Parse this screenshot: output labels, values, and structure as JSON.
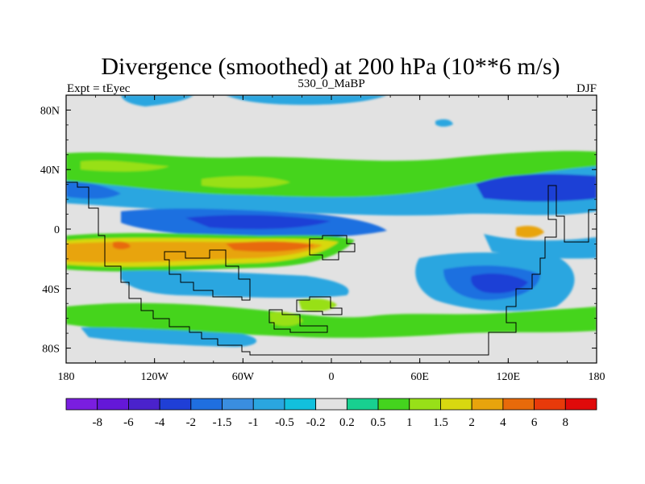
{
  "chart_data": {
    "type": "heatmap",
    "title": "Divergence (smoothed) at 200 hPa (10**6 m/s)",
    "subtitle_left": "Expt = tEyec",
    "subtitle_center": "530_0_MaBP",
    "subtitle_right": "DJF",
    "x_ticks": [
      "180",
      "120W",
      "60W",
      "0",
      "60E",
      "120E",
      "180"
    ],
    "y_ticks": [
      "80N",
      "40N",
      "0",
      "40S",
      "80S"
    ],
    "xlim": [
      -180,
      180
    ],
    "ylim": [
      -90,
      90
    ],
    "colorbar": {
      "levels": [
        "-8",
        "-6",
        "-4",
        "-2",
        "-1.5",
        "-1",
        "-0.5",
        "-0.2",
        "0.2",
        "0.5",
        "1",
        "1.5",
        "2",
        "4",
        "6",
        "8"
      ],
      "colors": [
        "#7a1ee0",
        "#6418d8",
        "#4a22cc",
        "#1f3fd6",
        "#1f6fe0",
        "#3a8ee0",
        "#2aa6e0",
        "#12c0dd",
        "#e2e2e2",
        "#18d090",
        "#44d41e",
        "#98e018",
        "#d8d810",
        "#e8a40c",
        "#e86a0a",
        "#e83a0a",
        "#e00a0a"
      ]
    },
    "regions": [
      {
        "name": "band-40n-blue",
        "lon": [
          -180,
          180
        ],
        "lat": [
          20,
          40
        ],
        "value": -1.2
      },
      {
        "name": "band-50n-green",
        "lon": [
          -180,
          180
        ],
        "lat": [
          42,
          58
        ],
        "value": 0.8
      },
      {
        "name": "pacific-deep-blue",
        "lon": [
          -120,
          -30
        ],
        "lat": [
          -5,
          10
        ],
        "value": -3
      },
      {
        "name": "tropical-orange",
        "lon": [
          -180,
          -10
        ],
        "lat": [
          -25,
          -5
        ],
        "value": 3
      },
      {
        "name": "tropical-red-core",
        "lon": [
          -70,
          -20
        ],
        "lat": [
          -18,
          -10
        ],
        "value": 6
      },
      {
        "name": "indian-ocean-blue",
        "lon": [
          60,
          110
        ],
        "lat": [
          -50,
          -25
        ],
        "value": -3
      },
      {
        "name": "west-pacific-blue",
        "lon": [
          100,
          180
        ],
        "lat": [
          20,
          40
        ],
        "value": -2.5
      },
      {
        "name": "southern-band-green",
        "lon": [
          -180,
          180
        ],
        "lat": [
          -65,
          -48
        ],
        "value": 0.7
      },
      {
        "name": "south-atlantic-green",
        "lon": [
          -40,
          0
        ],
        "lat": [
          -70,
          -55
        ],
        "value": 1.2
      },
      {
        "name": "top-cyan-patches",
        "lon": [
          -120,
          60
        ],
        "lat": [
          80,
          86
        ],
        "value": -0.5
      }
    ]
  }
}
